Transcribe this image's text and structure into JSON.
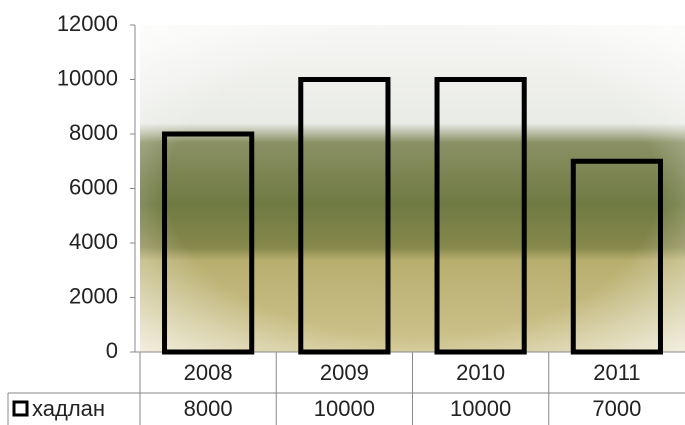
{
  "chart_data": {
    "type": "bar",
    "categories": [
      "2008",
      "2009",
      "2010",
      "2011"
    ],
    "series": [
      {
        "name": "хадлан",
        "color": "#000000",
        "values": [
          8000,
          10000,
          10000,
          7000
        ]
      }
    ],
    "ylim": [
      0,
      12000
    ],
    "yticks": [
      0,
      2000,
      4000,
      6000,
      8000,
      10000,
      12000
    ],
    "grid": false
  }
}
